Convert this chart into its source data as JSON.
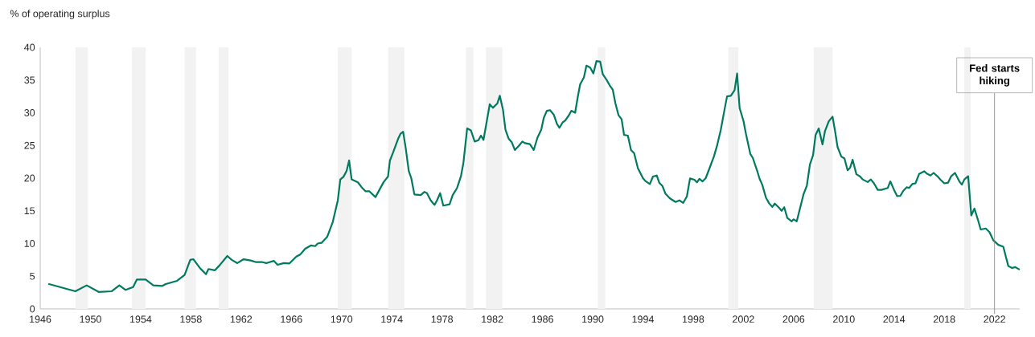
{
  "chart_data": {
    "type": "line",
    "ylabel": "% of operating surplus",
    "xlim": [
      1946,
      2024
    ],
    "ylim": [
      0,
      40
    ],
    "xticks": [
      1946,
      1950,
      1954,
      1958,
      1962,
      1966,
      1970,
      1974,
      1978,
      1982,
      1986,
      1990,
      1994,
      1998,
      2002,
      2006,
      2010,
      2014,
      2018,
      2022
    ],
    "yticks": [
      0,
      5,
      10,
      15,
      20,
      25,
      30,
      35,
      40
    ],
    "grid": false,
    "marker": "none",
    "line_style": "solid",
    "series": [
      {
        "color": "#007a5e",
        "x": [
          1946.7,
          1948.8,
          1949.7,
          1950.65,
          1951.7,
          1952.3,
          1952.8,
          1953.4,
          1953.7,
          1954.4,
          1955.0,
          1955.7,
          1956.0,
          1956.9,
          1957.5,
          1957.95,
          1958.2,
          1958.7,
          1959.2,
          1959.4,
          1959.9,
          1960.3,
          1960.9,
          1961.25,
          1961.7,
          1962.2,
          1962.75,
          1963.2,
          1963.7,
          1964.0,
          1964.6,
          1964.9,
          1965.4,
          1965.85,
          1966.4,
          1966.7,
          1967.1,
          1967.55,
          1967.9,
          1968.1,
          1968.4,
          1968.85,
          1969.3,
          1969.7,
          1969.9,
          1970.15,
          1970.4,
          1970.6,
          1970.8,
          1971.3,
          1971.6,
          1971.9,
          1972.2,
          1972.7,
          1973.35,
          1973.7,
          1973.85,
          1974.1,
          1974.5,
          1974.7,
          1974.9,
          1975.1,
          1975.35,
          1975.55,
          1975.8,
          1976.3,
          1976.6,
          1976.8,
          1977.1,
          1977.4,
          1977.6,
          1977.85,
          1978.1,
          1978.6,
          1978.85,
          1979.2,
          1979.5,
          1979.7,
          1980.0,
          1980.3,
          1980.6,
          1980.9,
          1981.1,
          1981.3,
          1981.5,
          1981.8,
          1982.05,
          1982.4,
          1982.6,
          1982.85,
          1983.05,
          1983.3,
          1983.55,
          1983.8,
          1984.1,
          1984.4,
          1984.6,
          1985.0,
          1985.3,
          1985.6,
          1985.9,
          1986.1,
          1986.35,
          1986.6,
          1986.9,
          1987.15,
          1987.35,
          1987.6,
          1987.8,
          1988.1,
          1988.3,
          1988.6,
          1988.8,
          1989.0,
          1989.3,
          1989.5,
          1989.8,
          1990.05,
          1990.3,
          1990.6,
          1990.8,
          1991.1,
          1991.35,
          1991.6,
          1991.8,
          1992.05,
          1992.3,
          1992.5,
          1992.8,
          1993.05,
          1993.3,
          1993.6,
          1994.0,
          1994.2,
          1994.55,
          1994.8,
          1995.1,
          1995.3,
          1995.55,
          1995.8,
          1996.15,
          1996.6,
          1996.9,
          1997.2,
          1997.5,
          1997.75,
          1998.1,
          1998.3,
          1998.5,
          1998.75,
          1999.0,
          1999.3,
          1999.65,
          1999.9,
          2000.2,
          2000.5,
          2000.7,
          2001.0,
          2001.3,
          2001.5,
          2001.7,
          2002.0,
          2002.2,
          2002.55,
          2002.75,
          2003.1,
          2003.3,
          2003.5,
          2003.8,
          2004.05,
          2004.3,
          2004.5,
          2004.8,
          2005.05,
          2005.25,
          2005.5,
          2005.85,
          2006.0,
          2006.25,
          2006.5,
          2006.8,
          2007.05,
          2007.3,
          2007.55,
          2007.75,
          2008.0,
          2008.3,
          2008.5,
          2008.8,
          2009.1,
          2009.3,
          2009.5,
          2009.8,
          2010.05,
          2010.3,
          2010.5,
          2010.7,
          2011.0,
          2011.3,
          2011.5,
          2011.9,
          2012.15,
          2012.4,
          2012.7,
          2013.0,
          2013.5,
          2013.7,
          2014.0,
          2014.25,
          2014.5,
          2014.75,
          2015.0,
          2015.2,
          2015.45,
          2015.7,
          2016.0,
          2016.4,
          2016.6,
          2016.9,
          2017.15,
          2017.5,
          2017.7,
          2018.0,
          2018.3,
          2018.55,
          2018.85,
          2019.2,
          2019.4,
          2019.6,
          2019.9,
          2020.15,
          2020.4,
          2020.7,
          2020.9,
          2021.3,
          2021.6,
          2021.9,
          2022.3,
          2022.7,
          2022.9,
          2023.1,
          2023.4,
          2023.65,
          2023.95
        ],
        "values": [
          3.8,
          2.7,
          3.6,
          2.6,
          2.7,
          3.6,
          2.9,
          3.35,
          4.5,
          4.5,
          3.6,
          3.5,
          3.8,
          4.3,
          5.2,
          7.5,
          7.6,
          6.3,
          5.3,
          6.1,
          5.9,
          6.7,
          8.1,
          7.5,
          7.0,
          7.6,
          7.4,
          7.15,
          7.15,
          7.0,
          7.35,
          6.75,
          7.0,
          6.95,
          8.0,
          8.3,
          9.2,
          9.7,
          9.6,
          10.0,
          10.1,
          11.0,
          13.3,
          16.6,
          19.8,
          20.2,
          21.1,
          22.7,
          19.8,
          19.35,
          18.6,
          18.0,
          18.0,
          17.1,
          19.4,
          20.25,
          22.7,
          23.9,
          26.0,
          26.8,
          27.1,
          24.7,
          21.1,
          20.0,
          17.5,
          17.4,
          17.9,
          17.7,
          16.6,
          15.9,
          16.6,
          17.7,
          15.8,
          16.0,
          17.4,
          18.5,
          20.25,
          22.3,
          27.6,
          27.3,
          25.6,
          25.8,
          26.5,
          25.85,
          28.0,
          31.3,
          30.75,
          31.4,
          32.6,
          30.5,
          27.4,
          26.05,
          25.5,
          24.3,
          24.9,
          25.6,
          25.35,
          25.2,
          24.3,
          26.2,
          27.4,
          29.2,
          30.3,
          30.4,
          29.7,
          28.3,
          27.7,
          28.5,
          28.8,
          29.6,
          30.3,
          30.0,
          32.3,
          34.35,
          35.4,
          37.2,
          36.9,
          36.0,
          37.9,
          37.8,
          35.9,
          35.05,
          34.2,
          33.5,
          31.5,
          29.65,
          29.0,
          26.6,
          26.5,
          24.3,
          23.8,
          21.5,
          20.0,
          19.55,
          19.1,
          20.25,
          20.4,
          19.3,
          18.8,
          17.6,
          16.9,
          16.35,
          16.6,
          16.2,
          17.2,
          19.95,
          19.75,
          19.35,
          19.9,
          19.5,
          20.0,
          21.5,
          23.3,
          24.95,
          27.4,
          30.5,
          32.5,
          32.6,
          33.45,
          36.0,
          30.7,
          28.8,
          26.8,
          23.7,
          23.1,
          21.1,
          19.85,
          19.0,
          17.0,
          16.15,
          15.6,
          16.1,
          15.55,
          15.0,
          15.55,
          13.9,
          13.4,
          13.7,
          13.4,
          15.3,
          17.6,
          18.8,
          22.1,
          23.5,
          26.6,
          27.6,
          25.15,
          27.2,
          28.7,
          29.4,
          27.2,
          24.75,
          23.3,
          23.0,
          21.2,
          21.6,
          22.8,
          20.6,
          20.25,
          19.8,
          19.4,
          19.8,
          19.2,
          18.2,
          18.2,
          18.5,
          19.5,
          18.2,
          17.25,
          17.3,
          18.1,
          18.6,
          18.5,
          19.1,
          19.2,
          20.65,
          21.05,
          20.7,
          20.4,
          20.8,
          20.2,
          19.75,
          19.2,
          19.3,
          20.3,
          20.8,
          19.5,
          19.0,
          19.8,
          20.3,
          14.3,
          15.35,
          13.5,
          12.15,
          12.3,
          11.75,
          10.5,
          9.8,
          9.5,
          8.0,
          6.55,
          6.25,
          6.4,
          6.05
        ]
      }
    ],
    "bands": [
      {
        "axis": "x",
        "from": 1948.8,
        "to": 1949.8,
        "color": "#f2f2f2"
      },
      {
        "axis": "x",
        "from": 1953.3,
        "to": 1954.4,
        "color": "#f2f2f2"
      },
      {
        "axis": "x",
        "from": 1957.5,
        "to": 1958.4,
        "color": "#f2f2f2"
      },
      {
        "axis": "x",
        "from": 1960.2,
        "to": 1961.0,
        "color": "#f2f2f2"
      },
      {
        "axis": "x",
        "from": 1969.7,
        "to": 1970.8,
        "color": "#f2f2f2"
      },
      {
        "axis": "x",
        "from": 1973.7,
        "to": 1975.0,
        "color": "#f2f2f2"
      },
      {
        "axis": "x",
        "from": 1979.9,
        "to": 1980.5,
        "color": "#f2f2f2"
      },
      {
        "axis": "x",
        "from": 1981.5,
        "to": 1982.8,
        "color": "#f2f2f2"
      },
      {
        "axis": "x",
        "from": 1990.4,
        "to": 1991.0,
        "color": "#f2f2f2"
      },
      {
        "axis": "x",
        "from": 2000.8,
        "to": 2001.6,
        "color": "#f2f2f2"
      },
      {
        "axis": "x",
        "from": 2007.6,
        "to": 2009.1,
        "color": "#f2f2f2"
      },
      {
        "axis": "x",
        "from": 2019.6,
        "to": 2020.1,
        "color": "#f2f2f2"
      }
    ],
    "ref_lines": [
      {
        "axis": "x",
        "value": 2022,
        "label": "Fed starts hiking",
        "color": "#7f7f7f",
        "line_style": "solid"
      }
    ]
  }
}
